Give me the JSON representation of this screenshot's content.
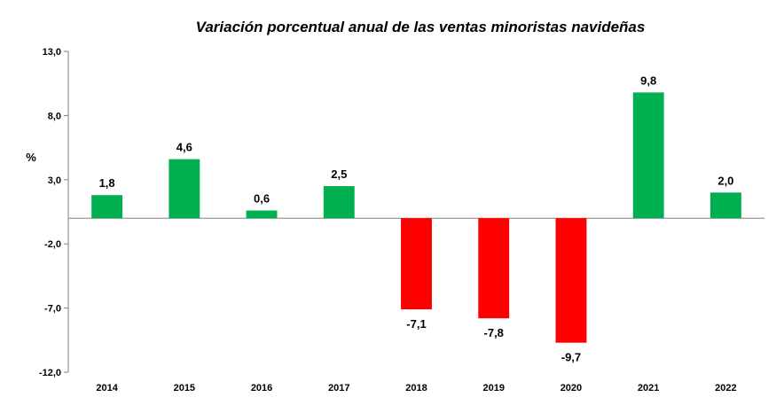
{
  "chart_data": {
    "type": "bar",
    "title": "Variación porcentual anual de las ventas minoristas navideñas",
    "xlabel": "",
    "ylabel": "%",
    "categories": [
      "2014",
      "2015",
      "2016",
      "2017",
      "2018",
      "2019",
      "2020",
      "2021",
      "2022"
    ],
    "values": [
      1.8,
      4.6,
      0.6,
      2.5,
      -7.1,
      -7.8,
      -9.7,
      9.8,
      2.0
    ],
    "data_labels": [
      "1,8",
      "4,6",
      "0,6",
      "2,5",
      "-7,1",
      "-7,8",
      "-9,7",
      "9,8",
      "2,0"
    ],
    "ylim": [
      -12,
      13
    ],
    "yticks": [
      13,
      8,
      3,
      -2,
      -7,
      -12
    ],
    "ytick_labels": [
      "13,0",
      "8,0",
      "3,0",
      "-2,0",
      "-7,0",
      "-12,0"
    ],
    "grid": false,
    "legend": "none",
    "colors": {
      "positive": "#00b050",
      "negative": "#ff0000",
      "axis": "#808080",
      "text": "#000000"
    }
  }
}
